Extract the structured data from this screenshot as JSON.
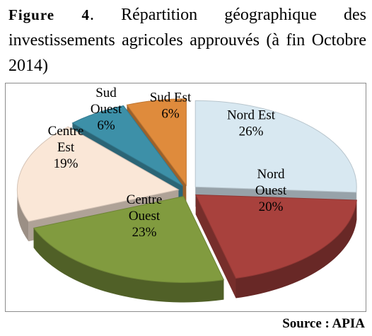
{
  "caption": {
    "figure_label": "Figure 4",
    "text": ". Répartition géographique des investissements agricoles approuvés (à fin Octobre 2014)"
  },
  "source": "Source : APIA",
  "chart_data": {
    "type": "pie",
    "title": "",
    "slices": [
      {
        "lines": [
          "Nord Est"
        ],
        "value": 26,
        "color": "#d8e8f1"
      },
      {
        "lines": [
          "Nord",
          "Ouest"
        ],
        "value": 20,
        "color": "#a8413d"
      },
      {
        "lines": [
          "Centre",
          "Ouest"
        ],
        "value": 23,
        "color": "#819b3f"
      },
      {
        "lines": [
          "Centre",
          "Est"
        ],
        "value": 19,
        "color": "#fae7d7"
      },
      {
        "lines": [
          "Sud",
          "Ouest"
        ],
        "value": 6,
        "color": "#3d90a8"
      },
      {
        "lines": [
          "Sud Est"
        ],
        "value": 6,
        "color": "#df8b3c"
      }
    ],
    "value_suffix": "%",
    "legend": "none",
    "style": "3d-exploded"
  }
}
